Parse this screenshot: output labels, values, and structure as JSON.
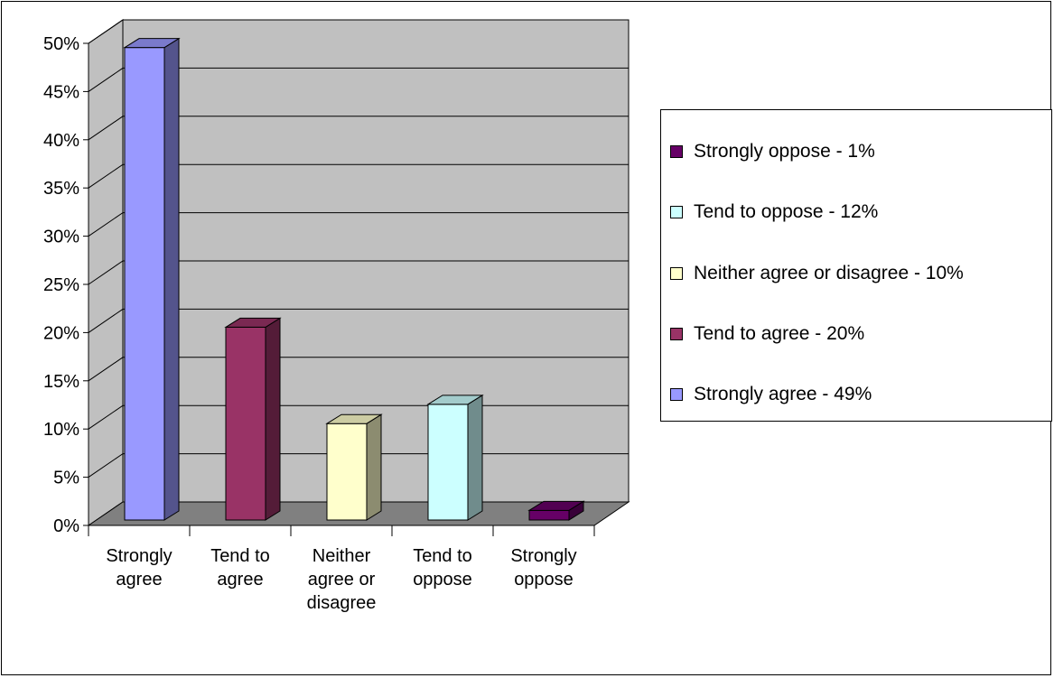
{
  "chart_data": {
    "type": "bar",
    "categories": [
      [
        "Strongly",
        "agree"
      ],
      [
        "Tend to",
        "agree"
      ],
      [
        "Neither",
        "agree or",
        "disagree"
      ],
      [
        "Tend to",
        "oppose"
      ],
      [
        "Strongly",
        "oppose"
      ]
    ],
    "values": [
      49,
      20,
      10,
      12,
      1
    ],
    "colors": [
      "#9999ff",
      "#993366",
      "#ffffcc",
      "#ccffff",
      "#660066"
    ],
    "ylim": [
      0,
      50
    ],
    "yticks": [
      "0%",
      "5%",
      "10%",
      "15%",
      "20%",
      "25%",
      "30%",
      "35%",
      "40%",
      "45%",
      "50%"
    ],
    "grid": true,
    "legend_position": "right",
    "legend": [
      {
        "label": "Strongly oppose - 1%",
        "color": "#660066"
      },
      {
        "label": "Tend to oppose - 12%",
        "color": "#ccffff"
      },
      {
        "label": "Neither agree or disagree - 10%",
        "color": "#ffffcc"
      },
      {
        "label": "Tend to agree - 20%",
        "color": "#993366"
      },
      {
        "label": "Strongly agree - 49%",
        "color": "#9999ff"
      }
    ]
  }
}
